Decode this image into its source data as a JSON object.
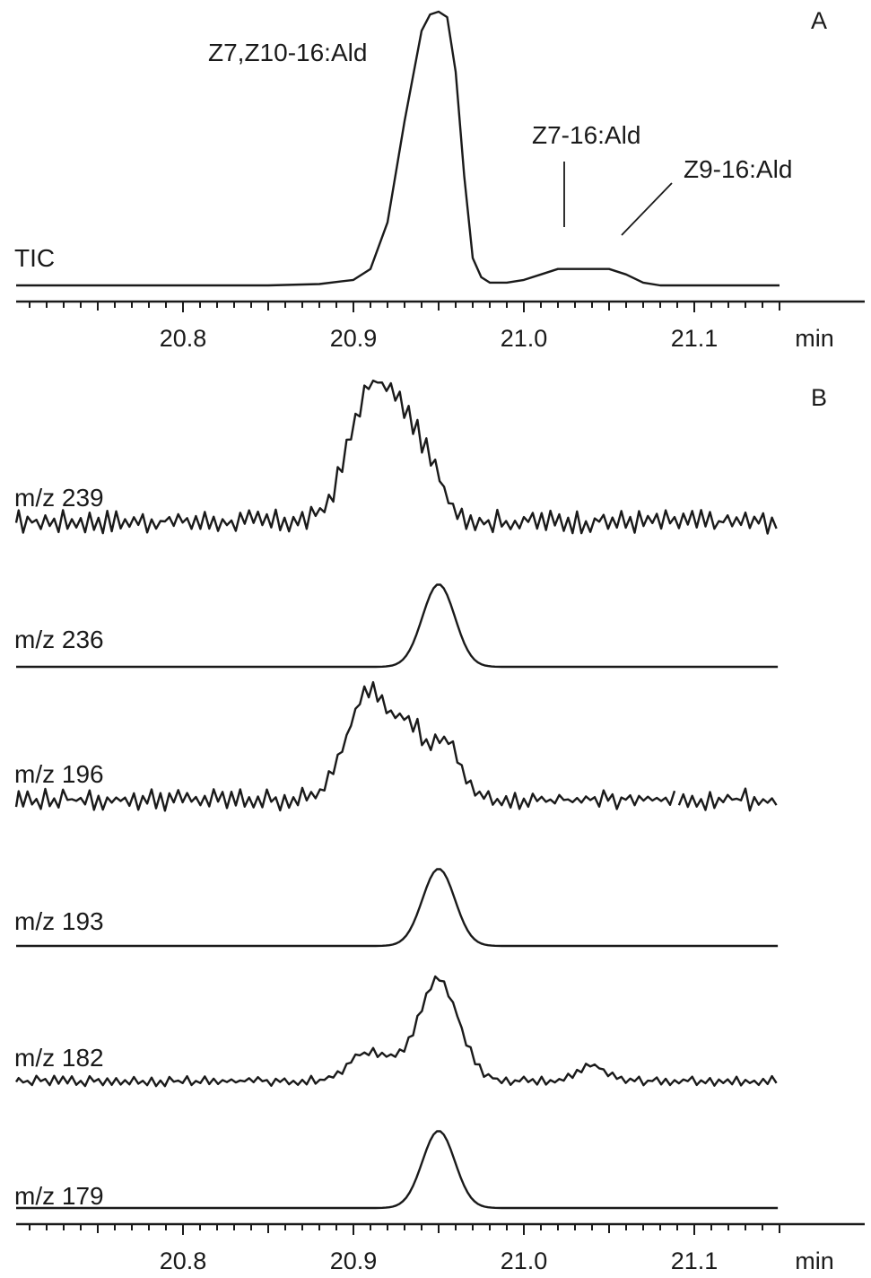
{
  "chart_data": [
    {
      "type": "line",
      "panel_label": "A",
      "x_unit": "min",
      "xlim": [
        20.7,
        21.15
      ],
      "xticks": [
        "20.8",
        "20.9",
        "21.0",
        "21.1"
      ],
      "minor_tick_step": 0.01,
      "series": [
        {
          "name": "TIC",
          "x": [
            20.7,
            20.8,
            20.85,
            20.88,
            20.9,
            20.91,
            20.92,
            20.93,
            20.94,
            20.945,
            20.95,
            20.955,
            20.96,
            20.965,
            20.97,
            20.975,
            20.98,
            20.99,
            21.0,
            21.01,
            21.02,
            21.03,
            21.04,
            21.05,
            21.06,
            21.07,
            21.08,
            21.1,
            21.15
          ],
          "y": [
            0,
            0,
            0,
            0.005,
            0.02,
            0.06,
            0.23,
            0.6,
            0.93,
            0.99,
            1.0,
            0.98,
            0.78,
            0.4,
            0.1,
            0.03,
            0.01,
            0.01,
            0.02,
            0.04,
            0.06,
            0.06,
            0.06,
            0.06,
            0.04,
            0.01,
            0,
            0,
            0
          ]
        }
      ],
      "annotations": [
        {
          "text": "Z7,Z10-16:Ald",
          "x": 20.95
        },
        {
          "text": "Z7-16:Ald",
          "x": 21.023
        },
        {
          "text": "Z9-16:Ald",
          "x": 21.055
        }
      ]
    },
    {
      "type": "line",
      "panel_label": "B",
      "x_unit": "min",
      "xlim": [
        20.7,
        21.15
      ],
      "xticks": [
        "20.8",
        "20.9",
        "21.0",
        "21.1"
      ],
      "minor_tick_step": 0.01,
      "series": [
        {
          "name": "m/z 239",
          "kind": "noisy",
          "base": 0.1,
          "noise": 0.09,
          "peaks": [
            [
              20.91,
              0.95,
              0.013
            ],
            [
              20.93,
              0.45,
              0.01
            ],
            [
              20.945,
              0.3,
              0.01
            ]
          ],
          "break_at": null
        },
        {
          "name": "m/z 236",
          "kind": "smooth",
          "peaks": [
            [
              20.95,
              1.0,
              0.0095
            ]
          ]
        },
        {
          "name": "m/z 196",
          "kind": "noisy",
          "base": 0.15,
          "noise": 0.09,
          "peaks": [
            [
              20.91,
              0.9,
              0.013
            ],
            [
              20.935,
              0.45,
              0.008
            ],
            [
              20.955,
              0.45,
              0.008
            ]
          ],
          "break_at": 21.09
        },
        {
          "name": "m/z 193",
          "kind": "smooth",
          "peaks": [
            [
              20.95,
              1.0,
              0.0095
            ]
          ]
        },
        {
          "name": "m/z 182",
          "kind": "noisy",
          "base": 0.08,
          "noise": 0.05,
          "peaks": [
            [
              20.95,
              0.95,
              0.012
            ],
            [
              20.91,
              0.28,
              0.012
            ],
            [
              21.04,
              0.15,
              0.008
            ]
          ],
          "break_at": null
        },
        {
          "name": "m/z 179",
          "kind": "smooth",
          "peaks": [
            [
              20.95,
              1.0,
              0.0095
            ]
          ]
        }
      ]
    }
  ]
}
